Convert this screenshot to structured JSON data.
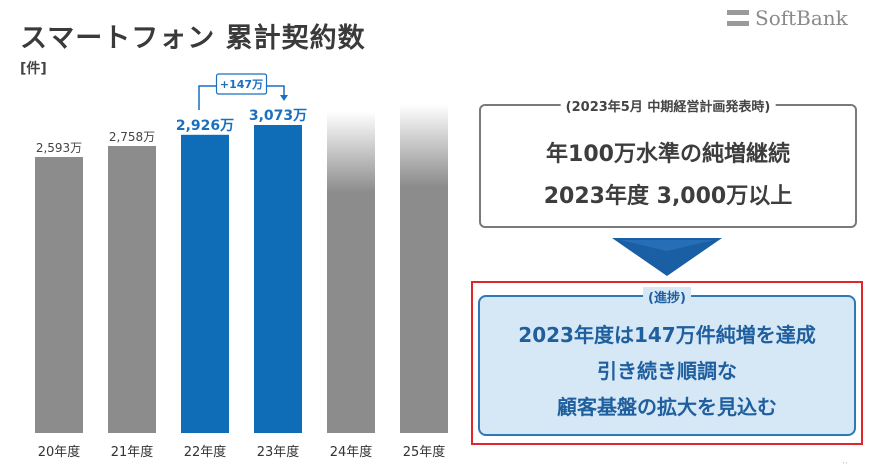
{
  "header": {
    "title": "スマートフォン 累計契約数",
    "unit_label": "[件]"
  },
  "logo": {
    "text": "SoftBank",
    "icon": "softbank-logo-bars"
  },
  "chart_data": {
    "type": "bar",
    "categories": [
      "20年度",
      "21年度",
      "22年度",
      "23年度",
      "24年度",
      "25年度"
    ],
    "values": [
      2593,
      2758,
      2926,
      3073,
      null,
      null
    ],
    "value_labels": [
      "2,593万",
      "2,758万",
      "2,926万",
      "3,073万",
      "",
      ""
    ],
    "unit": "万件",
    "bar_colors": [
      "#8c8c8c",
      "#8c8c8c",
      "#0f6db8",
      "#0f6db8",
      "#8c8c8c",
      "#8c8c8c"
    ],
    "label_colors": [
      "#444444",
      "#444444",
      "#1a6fbf",
      "#1a6fbf",
      "#444444",
      "#444444"
    ],
    "future_bars": [
      {
        "category": "24年度",
        "style": "faded-top"
      },
      {
        "category": "25年度",
        "style": "faded-top"
      }
    ],
    "annotation": {
      "label": "+147万",
      "from": "22年度",
      "to": "23年度"
    },
    "axes_visible": false,
    "grid": false
  },
  "goal_box": {
    "caption": "(2023年5月 中期経営計画発表時)",
    "line1": "年100万水準の純増継続",
    "line2": "2023年度 3,000万以上"
  },
  "progress_box": {
    "caption": "(進捗)",
    "line1": "2023年度は147万件純増を達成",
    "line2": "引き続き順調な",
    "line3": "顧客基盤の拡大を見込む"
  },
  "colors": {
    "accent_blue": "#0f6db8",
    "bar_gray": "#8c8c8c",
    "highlight_red": "#e0262b",
    "progress_bg": "#d6e7f6",
    "arrow_blue": "#1a5ea3"
  },
  "footer": {
    "page_marker": "··"
  }
}
